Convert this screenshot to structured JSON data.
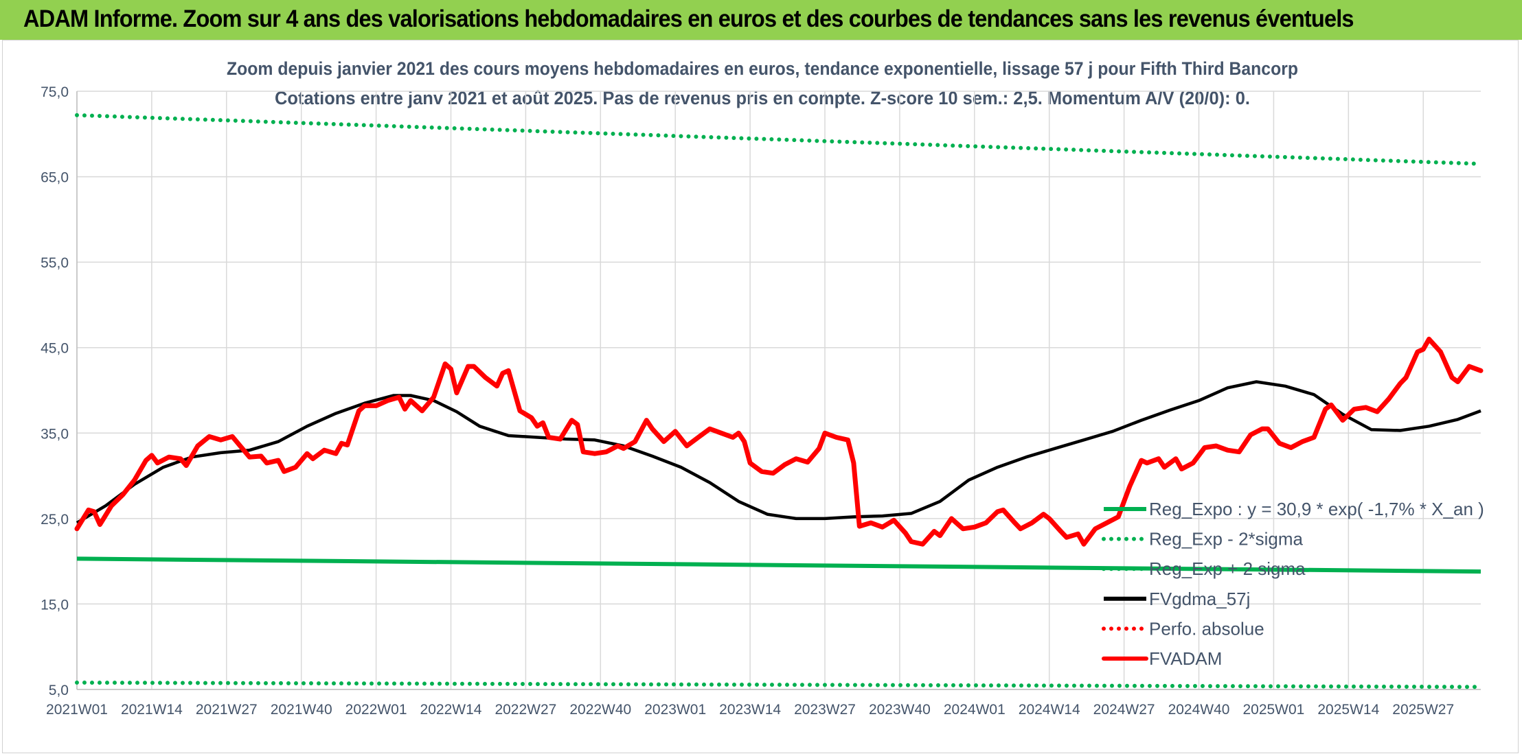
{
  "banner": {
    "title": "ADAM Informe. Zoom sur 4 ans des valorisations hebdomadaires en euros et des courbes de tendances sans les revenus éventuels"
  },
  "colors": {
    "banner_bg": "#92d050",
    "reg_green": "#00b050",
    "black": "#000000",
    "red": "#ff0000",
    "grid": "#d9d9d9",
    "title_text": "#44546a"
  },
  "chart_data": {
    "type": "line",
    "title": "Zoom depuis janvier 2021 des cours moyens hebdomadaires en euros, tendance exponentielle, lissage 57 j pour Fifth Third Bancorp",
    "subtitle": "Cotations entre janv 2021 et août 2025. Pas de revenus pris en compte. Z-score 10 sem.: 2,5. Momentum A/V (20/0): 0.",
    "xlabel": "",
    "ylabel": "",
    "grid": true,
    "legend_position": "bottom-right",
    "ylim": [
      5,
      75
    ],
    "y_ticks": [
      "5,0",
      "15,0",
      "25,0",
      "35,0",
      "45,0",
      "55,0",
      "65,0",
      "75,0"
    ],
    "x_ticks": [
      "2021W01",
      "2021W14",
      "2021W27",
      "2021W40",
      "2022W01",
      "2022W14",
      "2022W27",
      "2022W40",
      "2023W01",
      "2023W14",
      "2023W27",
      "2023W40",
      "2024W01",
      "2024W14",
      "2024W27",
      "2024W40",
      "2025W01",
      "2025W14",
      "2025W27"
    ],
    "x_tick_week_index": [
      0,
      13,
      26,
      39,
      52,
      65,
      78,
      91,
      104,
      117,
      130,
      143,
      156,
      169,
      182,
      195,
      208,
      221,
      234
    ],
    "weeks_total": 245,
    "series": [
      {
        "name": "Reg_Expo : y = 30,9 * exp( -1,7% *  X_an )",
        "style": "solid",
        "color": "#00b050",
        "points": [
          [
            0,
            20.3
          ],
          [
            244,
            18.8
          ]
        ]
      },
      {
        "name": "Reg_Exp - 2*sigma",
        "style": "dotted",
        "color": "#00b050",
        "points": [
          [
            0,
            5.8
          ],
          [
            244,
            5.3
          ]
        ]
      },
      {
        "name": "Reg_Exp + 2 sigma",
        "style": "dotted",
        "color": "#00b050",
        "points": [
          [
            0,
            72.2
          ],
          [
            244,
            66.5
          ]
        ]
      },
      {
        "name": "FVgdma_57j",
        "style": "solid",
        "color": "#000000",
        "points": [
          [
            0,
            24.5
          ],
          [
            5,
            26.5
          ],
          [
            10,
            29.0
          ],
          [
            15,
            31.0
          ],
          [
            20,
            32.2
          ],
          [
            25,
            32.7
          ],
          [
            30,
            33.0
          ],
          [
            35,
            34.0
          ],
          [
            40,
            35.8
          ],
          [
            45,
            37.3
          ],
          [
            50,
            38.5
          ],
          [
            55,
            39.4
          ],
          [
            58,
            39.4
          ],
          [
            62,
            38.8
          ],
          [
            66,
            37.5
          ],
          [
            70,
            35.8
          ],
          [
            75,
            34.7
          ],
          [
            80,
            34.5
          ],
          [
            85,
            34.3
          ],
          [
            90,
            34.2
          ],
          [
            95,
            33.5
          ],
          [
            100,
            32.3
          ],
          [
            105,
            31.0
          ],
          [
            110,
            29.2
          ],
          [
            115,
            27.0
          ],
          [
            120,
            25.5
          ],
          [
            125,
            25.0
          ],
          [
            130,
            25.0
          ],
          [
            135,
            25.2
          ],
          [
            140,
            25.3
          ],
          [
            145,
            25.6
          ],
          [
            150,
            27.0
          ],
          [
            155,
            29.5
          ],
          [
            160,
            31.0
          ],
          [
            165,
            32.2
          ],
          [
            170,
            33.2
          ],
          [
            175,
            34.2
          ],
          [
            180,
            35.2
          ],
          [
            185,
            36.5
          ],
          [
            190,
            37.7
          ],
          [
            195,
            38.8
          ],
          [
            200,
            40.3
          ],
          [
            205,
            41.0
          ],
          [
            210,
            40.5
          ],
          [
            215,
            39.5
          ],
          [
            220,
            37.2
          ],
          [
            225,
            35.4
          ],
          [
            230,
            35.3
          ],
          [
            235,
            35.8
          ],
          [
            240,
            36.6
          ],
          [
            244,
            37.6
          ]
        ]
      },
      {
        "name": "Perfo. absolue",
        "style": "dotted",
        "color": "#ff0000",
        "points": []
      },
      {
        "name": "FVADAM",
        "style": "solid-thick",
        "color": "#ff0000",
        "points": [
          [
            0,
            23.8
          ],
          [
            2,
            26.0
          ],
          [
            3,
            25.8
          ],
          [
            4,
            24.3
          ],
          [
            6,
            26.5
          ],
          [
            8,
            27.8
          ],
          [
            10,
            29.5
          ],
          [
            12,
            31.8
          ],
          [
            13,
            32.4
          ],
          [
            14,
            31.5
          ],
          [
            16,
            32.2
          ],
          [
            18,
            32.0
          ],
          [
            19,
            31.2
          ],
          [
            21,
            33.5
          ],
          [
            23,
            34.6
          ],
          [
            25,
            34.2
          ],
          [
            27,
            34.6
          ],
          [
            29,
            33.0
          ],
          [
            30,
            32.2
          ],
          [
            32,
            32.3
          ],
          [
            33,
            31.5
          ],
          [
            35,
            31.8
          ],
          [
            36,
            30.5
          ],
          [
            38,
            31.0
          ],
          [
            40,
            32.6
          ],
          [
            41,
            32.0
          ],
          [
            43,
            33.0
          ],
          [
            45,
            32.6
          ],
          [
            46,
            33.8
          ],
          [
            47,
            33.6
          ],
          [
            49,
            37.6
          ],
          [
            50,
            38.2
          ],
          [
            52,
            38.2
          ],
          [
            54,
            38.8
          ],
          [
            56,
            39.2
          ],
          [
            57,
            37.8
          ],
          [
            58,
            38.8
          ],
          [
            60,
            37.6
          ],
          [
            62,
            39.2
          ],
          [
            64,
            43.1
          ],
          [
            65,
            42.5
          ],
          [
            66,
            39.7
          ],
          [
            68,
            42.8
          ],
          [
            69,
            42.8
          ],
          [
            71,
            41.5
          ],
          [
            73,
            40.5
          ],
          [
            74,
            42.0
          ],
          [
            75,
            42.3
          ],
          [
            77,
            37.6
          ],
          [
            79,
            36.8
          ],
          [
            80,
            35.8
          ],
          [
            81,
            36.2
          ],
          [
            82,
            34.5
          ],
          [
            84,
            34.3
          ],
          [
            86,
            36.5
          ],
          [
            87,
            36.0
          ],
          [
            88,
            32.8
          ],
          [
            90,
            32.6
          ],
          [
            92,
            32.8
          ],
          [
            94,
            33.5
          ],
          [
            95,
            33.2
          ],
          [
            97,
            34.0
          ],
          [
            99,
            36.5
          ],
          [
            100,
            35.5
          ],
          [
            102,
            34.0
          ],
          [
            104,
            35.2
          ],
          [
            106,
            33.5
          ],
          [
            108,
            34.5
          ],
          [
            110,
            35.5
          ],
          [
            112,
            35.0
          ],
          [
            114,
            34.5
          ],
          [
            115,
            35.0
          ],
          [
            116,
            34.0
          ],
          [
            117,
            31.5
          ],
          [
            119,
            30.5
          ],
          [
            121,
            30.3
          ],
          [
            123,
            31.3
          ],
          [
            125,
            32.0
          ],
          [
            127,
            31.6
          ],
          [
            129,
            33.2
          ],
          [
            130,
            35.0
          ],
          [
            132,
            34.5
          ],
          [
            134,
            34.2
          ],
          [
            135,
            31.5
          ],
          [
            136,
            24.1
          ],
          [
            138,
            24.5
          ],
          [
            140,
            24.0
          ],
          [
            142,
            24.8
          ],
          [
            144,
            23.3
          ],
          [
            145,
            22.3
          ],
          [
            147,
            22.0
          ],
          [
            149,
            23.5
          ],
          [
            150,
            23.0
          ],
          [
            152,
            25.0
          ],
          [
            154,
            23.8
          ],
          [
            156,
            24.0
          ],
          [
            158,
            24.5
          ],
          [
            160,
            25.8
          ],
          [
            161,
            26.0
          ],
          [
            163,
            24.5
          ],
          [
            164,
            23.8
          ],
          [
            166,
            24.5
          ],
          [
            168,
            25.5
          ],
          [
            169,
            25.0
          ],
          [
            171,
            23.5
          ],
          [
            172,
            22.8
          ],
          [
            174,
            23.2
          ],
          [
            175,
            22.0
          ],
          [
            177,
            23.8
          ],
          [
            179,
            24.5
          ],
          [
            181,
            25.2
          ],
          [
            183,
            28.8
          ],
          [
            185,
            31.8
          ],
          [
            186,
            31.5
          ],
          [
            188,
            32.0
          ],
          [
            189,
            31.0
          ],
          [
            191,
            32.0
          ],
          [
            192,
            30.8
          ],
          [
            194,
            31.5
          ],
          [
            196,
            33.3
          ],
          [
            198,
            33.5
          ],
          [
            200,
            33.0
          ],
          [
            202,
            32.8
          ],
          [
            204,
            34.8
          ],
          [
            206,
            35.5
          ],
          [
            207,
            35.5
          ],
          [
            209,
            33.8
          ],
          [
            211,
            33.3
          ],
          [
            213,
            34.0
          ],
          [
            215,
            34.5
          ],
          [
            217,
            37.8
          ],
          [
            218,
            38.3
          ],
          [
            220,
            36.5
          ],
          [
            222,
            37.8
          ],
          [
            224,
            38.0
          ],
          [
            226,
            37.5
          ],
          [
            228,
            39.0
          ],
          [
            230,
            40.8
          ],
          [
            231,
            41.5
          ],
          [
            233,
            44.5
          ],
          [
            234,
            44.8
          ],
          [
            235,
            46.0
          ],
          [
            237,
            44.5
          ],
          [
            239,
            41.5
          ],
          [
            240,
            41.0
          ],
          [
            242,
            42.8
          ],
          [
            244,
            42.3
          ]
        ]
      }
    ]
  }
}
